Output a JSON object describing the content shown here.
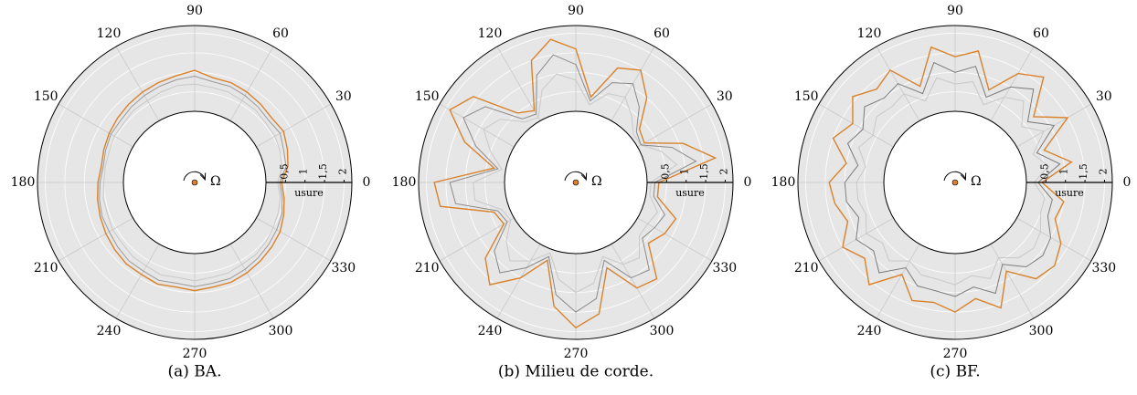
{
  "chart_data": [
    {
      "type": "polar",
      "caption": "(a) BA.",
      "r_label": "usure",
      "center_label": "Ω",
      "theta": [
        0,
        10,
        20,
        30,
        40,
        50,
        60,
        70,
        80,
        90,
        100,
        110,
        120,
        130,
        140,
        150,
        160,
        170,
        180,
        190,
        200,
        210,
        220,
        230,
        240,
        250,
        260,
        270,
        280,
        290,
        300,
        310,
        320,
        330,
        340,
        350
      ],
      "thetaticks": [
        0,
        30,
        60,
        90,
        120,
        150,
        180,
        210,
        240,
        270,
        300,
        330
      ],
      "rlim": [
        0,
        2.2
      ],
      "rticks": [
        {
          "value": 0.5,
          "label": "0,5"
        },
        1,
        {
          "value": 1.5,
          "label": "1,5"
        },
        2
      ],
      "series": [
        {
          "color": "#c8c8c8",
          "values": [
            0.3,
            0.45,
            0.5,
            0.55,
            0.55,
            0.6,
            0.6,
            0.65,
            0.65,
            0.7,
            0.7,
            0.65,
            0.6,
            0.6,
            0.55,
            0.55,
            0.5,
            0.5,
            0.5,
            0.55,
            0.55,
            0.6,
            0.6,
            0.65,
            0.65,
            0.7,
            0.65,
            0.7,
            0.65,
            0.65,
            0.6,
            0.6,
            0.55,
            0.5,
            0.45,
            0.4
          ]
        },
        {
          "color": "#9a9a9a",
          "values": [
            0.35,
            0.55,
            0.6,
            0.7,
            0.65,
            0.7,
            0.75,
            0.8,
            0.8,
            0.9,
            0.85,
            0.8,
            0.75,
            0.7,
            0.65,
            0.65,
            0.6,
            0.55,
            0.6,
            0.65,
            0.7,
            0.7,
            0.75,
            0.8,
            0.8,
            0.85,
            0.8,
            0.85,
            0.8,
            0.8,
            0.75,
            0.7,
            0.65,
            0.6,
            0.55,
            0.45
          ]
        },
        {
          "color": "#d9822b",
          "values": [
            0.4,
            0.6,
            0.7,
            0.8,
            0.75,
            0.8,
            0.85,
            0.9,
            0.9,
            1.05,
            0.95,
            0.9,
            0.85,
            0.8,
            0.75,
            0.7,
            0.65,
            0.6,
            0.65,
            0.7,
            0.75,
            0.8,
            0.85,
            0.9,
            0.9,
            0.95,
            0.9,
            0.95,
            0.9,
            0.9,
            0.85,
            0.8,
            0.75,
            0.7,
            0.6,
            0.5
          ]
        }
      ]
    },
    {
      "type": "polar",
      "caption": "(b) Milieu de corde.",
      "r_label": "usure",
      "center_label": "Ω",
      "theta": [
        0,
        10,
        20,
        30,
        40,
        50,
        60,
        70,
        80,
        90,
        100,
        110,
        120,
        130,
        140,
        150,
        160,
        170,
        180,
        190,
        200,
        210,
        220,
        230,
        240,
        250,
        260,
        270,
        280,
        290,
        300,
        310,
        320,
        330,
        340,
        350
      ],
      "thetaticks": [
        0,
        30,
        60,
        90,
        120,
        150,
        180,
        210,
        240,
        270,
        300,
        330
      ],
      "rlim": [
        0,
        2.2
      ],
      "rticks": [
        {
          "value": 0.5,
          "label": "0,5"
        },
        1,
        {
          "value": 1.5,
          "label": "1,5"
        },
        2
      ],
      "series": [
        {
          "color": "#c8c8c8",
          "values": [
            0.1,
            0.8,
            0.5,
            0.1,
            0.1,
            0.4,
            0.7,
            0.6,
            0.2,
            0.8,
            1.0,
            0.7,
            0.1,
            0.2,
            0.7,
            0.9,
            0.5,
            0.1,
            0.8,
            0.8,
            0.2,
            0.1,
            0.5,
            0.8,
            0.5,
            0.1,
            0.7,
            1.0,
            0.8,
            0.2,
            0.6,
            0.7,
            0.3,
            0.3,
            0.4,
            0.1
          ]
        },
        {
          "color": "#8a8a8a",
          "values": [
            0.2,
            1.3,
            0.8,
            0.1,
            0.2,
            0.7,
            1.1,
            0.9,
            0.3,
            1.2,
            1.5,
            1.1,
            0.2,
            0.3,
            1.2,
            1.5,
            0.9,
            0.2,
            1.4,
            1.3,
            0.3,
            0.2,
            0.9,
            1.2,
            0.7,
            0.2,
            1.1,
            1.5,
            1.2,
            0.3,
            1.0,
            1.1,
            0.4,
            0.5,
            0.6,
            0.2
          ]
        },
        {
          "color": "#d9822b",
          "values": [
            0.3,
            1.8,
            1.1,
            0.2,
            0.3,
            1.0,
            1.5,
            1.3,
            0.4,
            1.6,
            1.9,
            1.5,
            0.3,
            0.5,
            1.6,
            1.9,
            1.2,
            0.3,
            1.8,
            1.7,
            0.4,
            0.3,
            1.2,
            1.6,
            1.0,
            0.3,
            1.4,
            1.9,
            1.6,
            0.5,
            1.3,
            1.4,
            0.6,
            0.8,
            0.9,
            0.3
          ]
        }
      ]
    },
    {
      "type": "polar",
      "caption": "(c) BF.",
      "r_label": "usure",
      "center_label": "Ω",
      "theta": [
        0,
        10,
        20,
        30,
        40,
        50,
        60,
        70,
        80,
        90,
        100,
        110,
        120,
        130,
        140,
        150,
        160,
        170,
        180,
        190,
        200,
        210,
        220,
        230,
        240,
        250,
        260,
        270,
        280,
        290,
        300,
        310,
        320,
        330,
        340,
        350
      ],
      "thetaticks": [
        0,
        30,
        60,
        90,
        120,
        150,
        180,
        210,
        240,
        270,
        300,
        330
      ],
      "rlim": [
        0,
        2.2
      ],
      "rticks": [
        {
          "value": 0.5,
          "label": "0,5"
        },
        1,
        {
          "value": 1.5,
          "label": "1,5"
        },
        2
      ],
      "series": [
        {
          "color": "#c8c8c8",
          "values": [
            0.2,
            0.6,
            0.3,
            0.8,
            0.4,
            0.9,
            0.7,
            0.3,
            0.8,
            0.7,
            0.9,
            0.4,
            0.8,
            0.7,
            0.8,
            0.6,
            0.8,
            0.5,
            0.7,
            0.7,
            0.6,
            0.8,
            0.6,
            0.8,
            0.5,
            0.7,
            0.7,
            0.8,
            0.6,
            0.8,
            0.4,
            0.7,
            0.8,
            0.7,
            0.5,
            0.5
          ]
        },
        {
          "color": "#7a7a7a",
          "values": [
            0.3,
            0.9,
            0.4,
            1.1,
            0.6,
            1.3,
            1.0,
            0.5,
            1.2,
            1.0,
            1.3,
            0.6,
            1.1,
            1.0,
            1.2,
            0.9,
            1.1,
            0.7,
            1.0,
            1.0,
            0.8,
            1.1,
            0.9,
            1.2,
            0.7,
            1.0,
            1.0,
            1.1,
            0.9,
            1.2,
            0.6,
            1.0,
            1.1,
            1.0,
            0.7,
            0.7
          ]
        },
        {
          "color": "#d9822b",
          "values": [
            0.4,
            1.2,
            0.6,
            1.5,
            0.8,
            1.7,
            1.4,
            0.7,
            1.6,
            1.4,
            1.7,
            0.8,
            1.5,
            1.3,
            1.6,
            1.2,
            1.5,
            1.0,
            1.4,
            1.3,
            1.1,
            1.5,
            1.2,
            1.6,
            0.9,
            1.4,
            1.3,
            1.5,
            1.2,
            1.6,
            0.8,
            1.4,
            1.5,
            1.3,
            0.9,
            1.0
          ]
        }
      ]
    }
  ]
}
